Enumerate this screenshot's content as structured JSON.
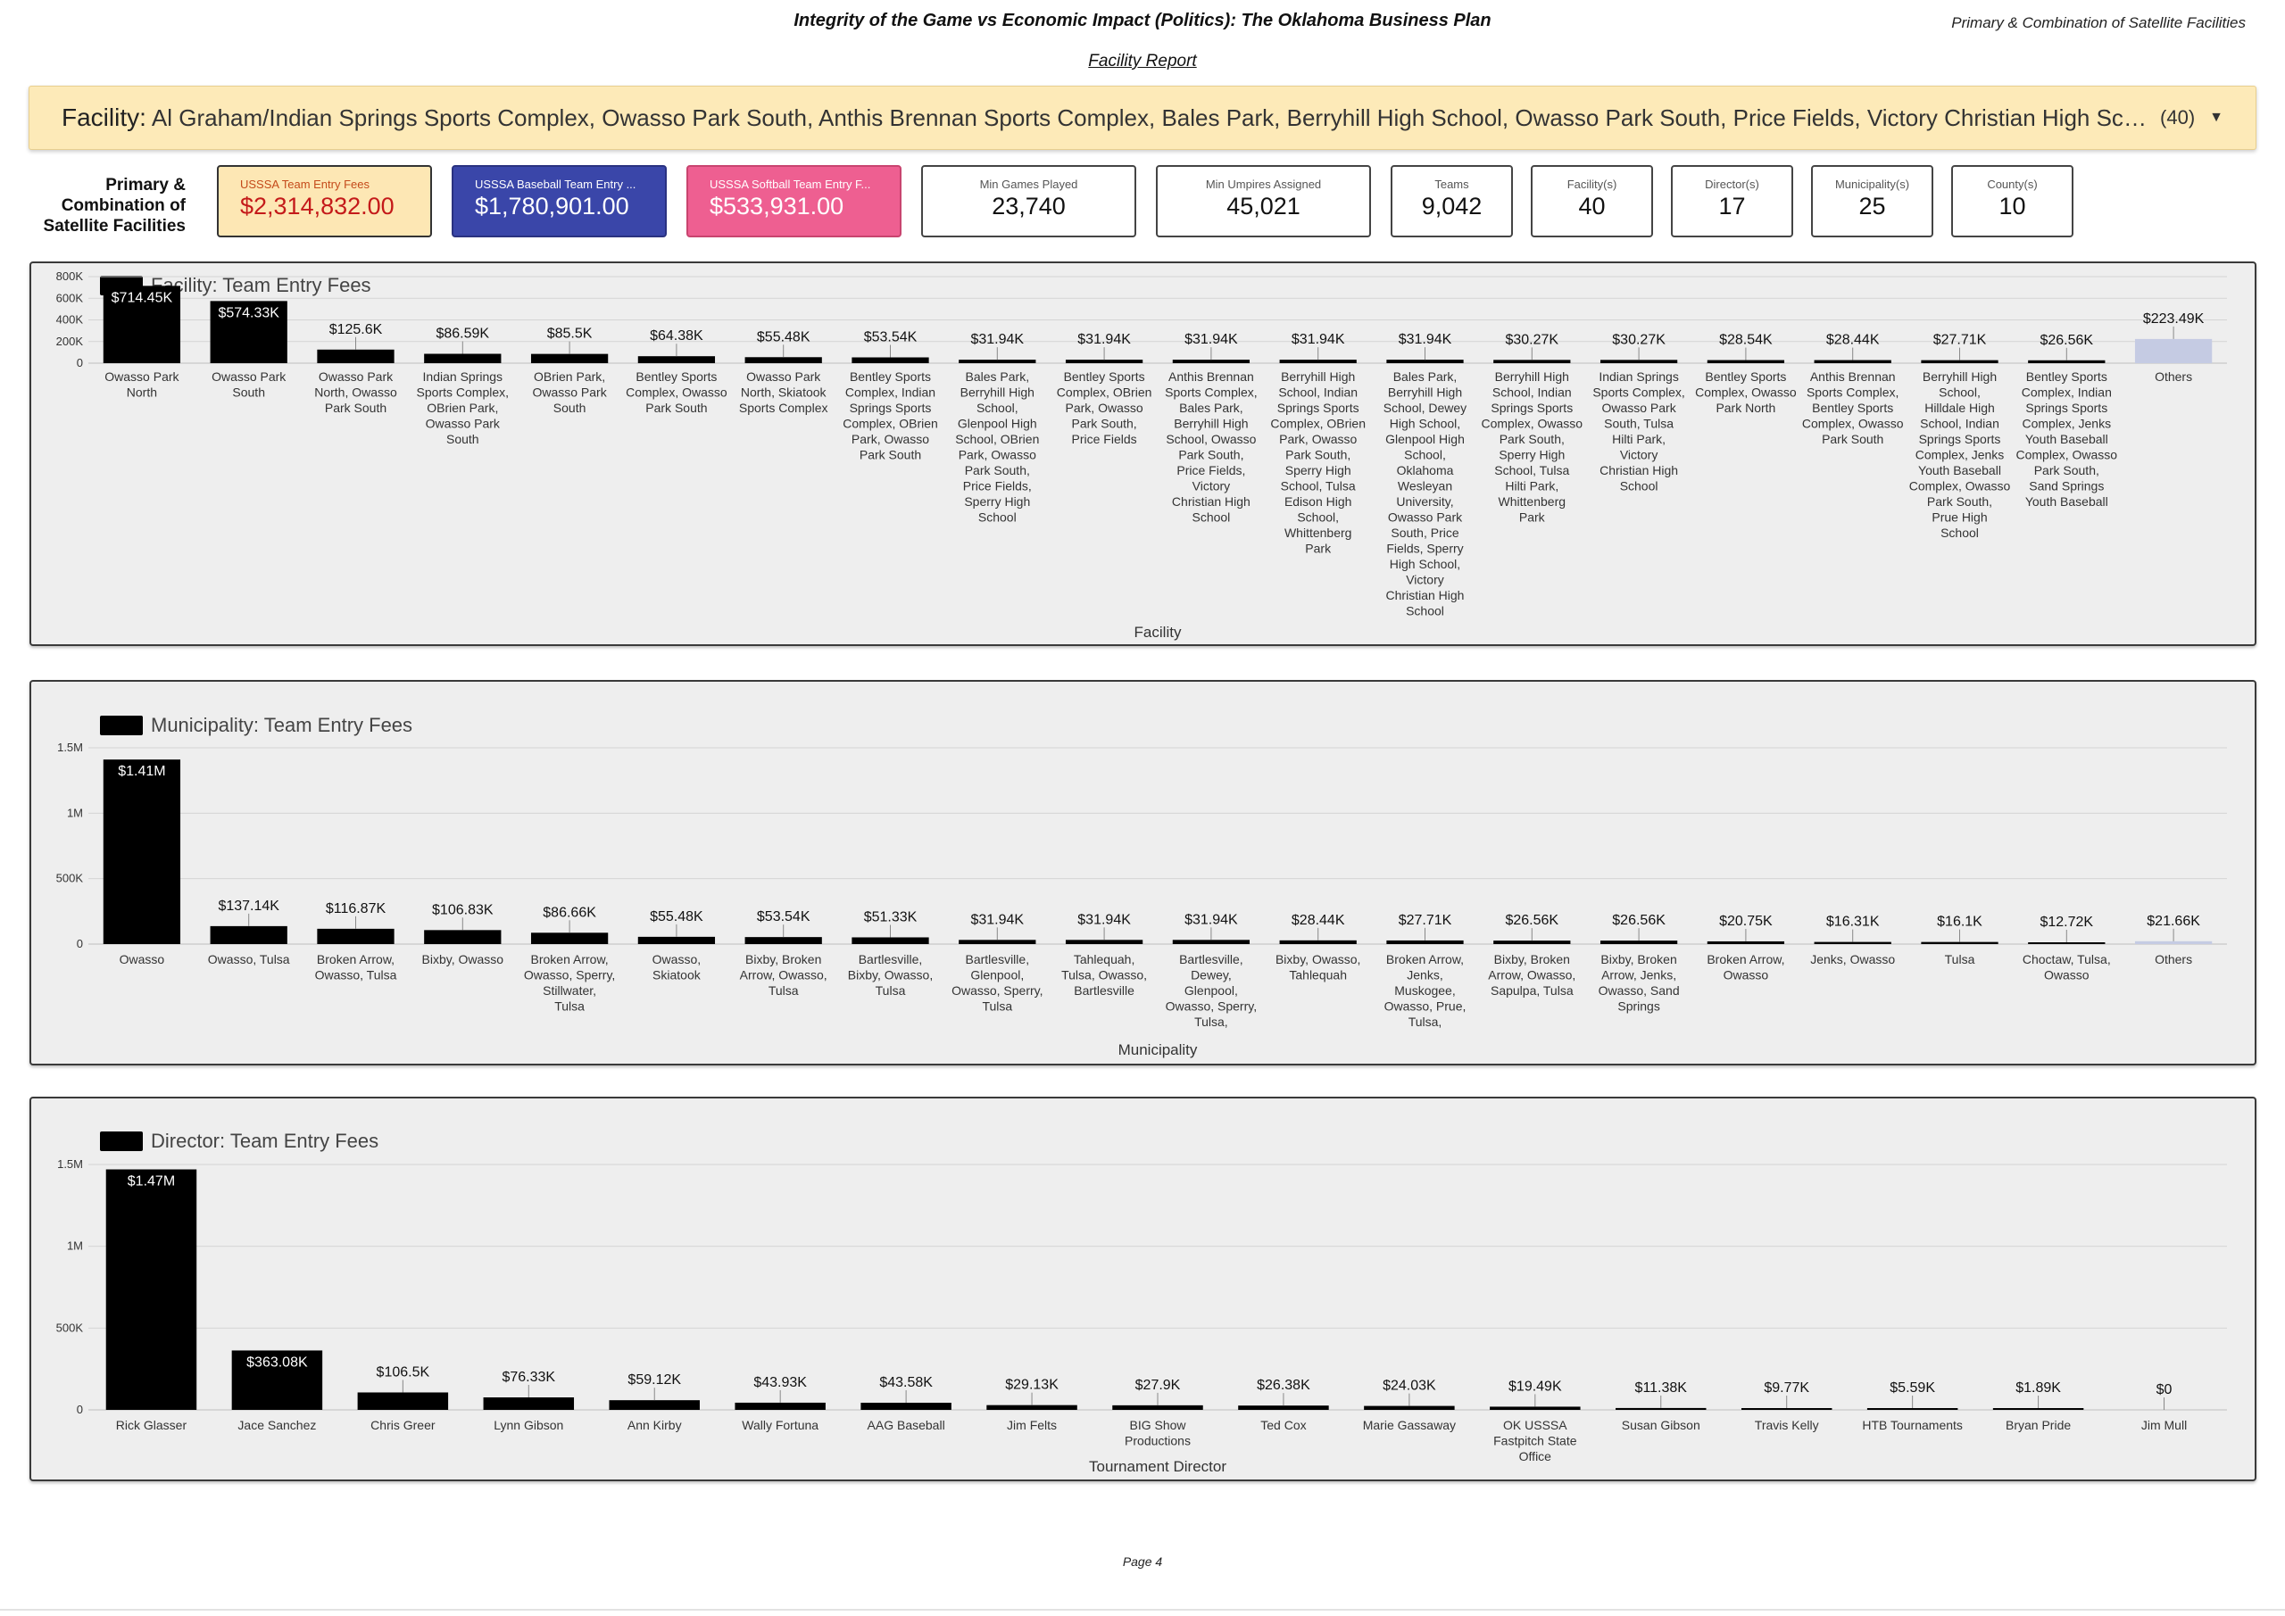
{
  "header": {
    "title": "Integrity of the Game vs Economic Impact (Politics): The Oklahoma Business Plan",
    "corner_label": "Primary & Combination of Satellite Facilities",
    "report_link": "Facility Report"
  },
  "filter": {
    "label": "Facility",
    "separator": ":",
    "value": "Al Graham/Indian Springs Sports Complex, Owasso Park South, Anthis Brennan Sports Complex, Bales Park, Berryhill High School, Owasso Park South, Price Fields, Victory Christian High School, Anthis Bre...",
    "count": "(40)",
    "caret_icon": "chevron-down-icon"
  },
  "kpi_label": "Primary & Combination of Satellite Facilities",
  "kpis": [
    {
      "title": "USSSA Team Entry Fees",
      "value": "$2,314,832.00"
    },
    {
      "title": "USSSA Baseball Team Entry ...",
      "value": "$1,780,901.00"
    },
    {
      "title": "USSSA Softball Team Entry F...",
      "value": "$533,931.00"
    },
    {
      "title": "Min Games Played",
      "value": "23,740"
    },
    {
      "title": "Min Umpires Assigned",
      "value": "45,021"
    },
    {
      "title": "Teams",
      "value": "9,042"
    },
    {
      "title": "Facility(s)",
      "value": "40"
    },
    {
      "title": "Director(s)",
      "value": "17"
    },
    {
      "title": "Municipality(s)",
      "value": "25"
    },
    {
      "title": "County(s)",
      "value": "10"
    }
  ],
  "colors": {
    "bar": "#000000",
    "others_bar": "#c5cbe3",
    "filter_bg": "#fdeab8",
    "kpi_fees_bg": "#fde7b4",
    "kpi_baseball_bg": "#3a46a9",
    "kpi_softball_bg": "#ee5f91"
  },
  "chart_data": [
    {
      "type": "bar",
      "title": "Facility: Team Entry Fees",
      "xlabel": "Facility",
      "ylabel": "",
      "ylim": [
        0,
        800000
      ],
      "yticks": [
        0,
        200000,
        400000,
        600000,
        800000
      ],
      "ytick_labels": [
        "0",
        "200K",
        "400K",
        "600K",
        "800K"
      ],
      "grid": true,
      "legend": "top-left",
      "categories": [
        "Owasso Park North",
        "Owasso Park South",
        "Owasso Park North, Owasso Park South",
        "Indian Springs Sports Complex, OBrien Park, Owasso Park South",
        "OBrien Park, Owasso Park South",
        "Bentley Sports Complex, Owasso Park South",
        "Owasso Park North, Skiatook Sports Complex",
        "Bentley Sports Complex, Indian Springs Sports Complex, OBrien Park, Owasso Park South",
        "Bales Park, Berryhill High School, Glenpool High School, OBrien Park, Owasso Park South, Price Fields, Sperry High School",
        "Bentley Sports Complex, OBrien Park, Owasso Park South, Price Fields",
        "Anthis Brennan Sports Complex, Bales Park, Berryhill High School, Owasso Park South, Price Fields, Victory Christian High School",
        "Berryhill High School, Indian Springs Sports Complex, OBrien Park, Owasso Park South, Sperry High School, Tulsa Edison High School, Whittenberg Park",
        "Bales Park, Berryhill High School, Dewey High School, Glenpool High School, Oklahoma Wesleyan University, Owasso Park South, Price Fields, Sperry High School, Victory Christian High School",
        "Berryhill High School, Indian Springs Sports Complex, Owasso Park South, Sperry High School, Tulsa Hilti Park, Whittenberg Park",
        "Indian Springs Sports Complex, Owasso Park South, Tulsa Hilti Park, Victory Christian High School",
        "Bentley Sports Complex, Owasso Park North",
        "Anthis Brennan Sports Complex, Bentley Sports Complex, Owasso Park South",
        "Berryhill High School, Hilldale High School, Indian Springs Sports Complex, Jenks Youth Baseball Complex, Owasso Park South, Prue High School",
        "Bentley Sports Complex, Indian Springs Sports Complex, Jenks Youth Baseball Complex, Owasso Park South, Sand Springs Youth Baseball",
        "Others"
      ],
      "values": [
        714450,
        574330,
        125600,
        86590,
        85500,
        64380,
        55480,
        53540,
        31940,
        31940,
        31940,
        31940,
        31940,
        30270,
        30270,
        28540,
        28440,
        27710,
        26560,
        223490
      ],
      "data_labels": [
        "$714.45K",
        "$574.33K",
        "$125.6K",
        "$86.59K",
        "$85.5K",
        "$64.38K",
        "$55.48K",
        "$53.54K",
        "$31.94K",
        "$31.94K",
        "$31.94K",
        "$31.94K",
        "$31.94K",
        "$30.27K",
        "$30.27K",
        "$28.54K",
        "$28.44K",
        "$27.71K",
        "$26.56K",
        "$223.49K"
      ]
    },
    {
      "type": "bar",
      "title": "Municipality: Team Entry Fees",
      "xlabel": "Municipality",
      "ylabel": "",
      "ylim": [
        0,
        1500000
      ],
      "yticks": [
        0,
        500000,
        1000000,
        1500000
      ],
      "ytick_labels": [
        "0",
        "500K",
        "1M",
        "1.5M"
      ],
      "grid": true,
      "legend": "top-left",
      "categories": [
        "Owasso",
        "Owasso, Tulsa",
        "Broken Arrow, Owasso, Tulsa",
        "Bixby, Owasso",
        "Broken Arrow, Owasso, Sperry, Stillwater, Tulsa",
        "Owasso, Skiatook",
        "Bixby, Broken Arrow, Owasso, Tulsa",
        "Bartlesville, Bixby, Owasso, Tulsa",
        "Bartlesville, Glenpool, Owasso, Sperry, Tulsa",
        "Tahlequah, Tulsa, Owasso, Bartlesville",
        "Bartlesville, Dewey, Glenpool, Owasso, Sperry, Tulsa,",
        "Bixby, Owasso, Tahlequah",
        "Broken Arrow, Jenks, Muskogee, Owasso, Prue, Tulsa,",
        "Bixby, Broken Arrow, Owasso, Sapulpa, Tulsa",
        "Bixby, Broken Arrow, Jenks, Owasso, Sand Springs",
        "Broken Arrow, Owasso",
        "Jenks, Owasso",
        "Tulsa",
        "Choctaw, Tulsa, Owasso",
        "Others"
      ],
      "values": [
        1410000,
        137140,
        116870,
        106830,
        86660,
        55480,
        53540,
        51330,
        31940,
        31940,
        31940,
        28440,
        27710,
        26560,
        26560,
        20750,
        16310,
        16100,
        12720,
        21660
      ],
      "data_labels": [
        "$1.41M",
        "$137.14K",
        "$116.87K",
        "$106.83K",
        "$86.66K",
        "$55.48K",
        "$53.54K",
        "$51.33K",
        "$31.94K",
        "$31.94K",
        "$31.94K",
        "$28.44K",
        "$27.71K",
        "$26.56K",
        "$26.56K",
        "$20.75K",
        "$16.31K",
        "$16.1K",
        "$12.72K",
        "$21.66K"
      ]
    },
    {
      "type": "bar",
      "title": "Director: Team Entry Fees",
      "xlabel": "Tournament Director",
      "ylabel": "",
      "ylim": [
        0,
        1500000
      ],
      "yticks": [
        0,
        500000,
        1000000,
        1500000
      ],
      "ytick_labels": [
        "0",
        "500K",
        "1M",
        "1.5M"
      ],
      "grid": true,
      "legend": "top-left",
      "categories": [
        "Rick Glasser",
        "Jace Sanchez",
        "Chris Greer",
        "Lynn Gibson",
        "Ann Kirby",
        "Wally Fortuna",
        "AAG Baseball",
        "Jim Felts",
        "BIG Show Productions",
        "Ted Cox",
        "Marie Gassaway",
        "OK USSSA Fastpitch State Office",
        "Susan Gibson",
        "Travis Kelly",
        "HTB Tournaments",
        "Bryan Pride",
        "Jim Mull"
      ],
      "values": [
        1470000,
        363080,
        106500,
        76330,
        59120,
        43930,
        43580,
        29130,
        27900,
        26380,
        24030,
        19490,
        11380,
        9770,
        5590,
        1890,
        0
      ],
      "data_labels": [
        "$1.47M",
        "$363.08K",
        "$106.5K",
        "$76.33K",
        "$59.12K",
        "$43.93K",
        "$43.58K",
        "$29.13K",
        "$27.9K",
        "$26.38K",
        "$24.03K",
        "$19.49K",
        "$11.38K",
        "$9.77K",
        "$5.59K",
        "$1.89K",
        "$0"
      ]
    }
  ],
  "footer": {
    "page": "Page 4"
  }
}
